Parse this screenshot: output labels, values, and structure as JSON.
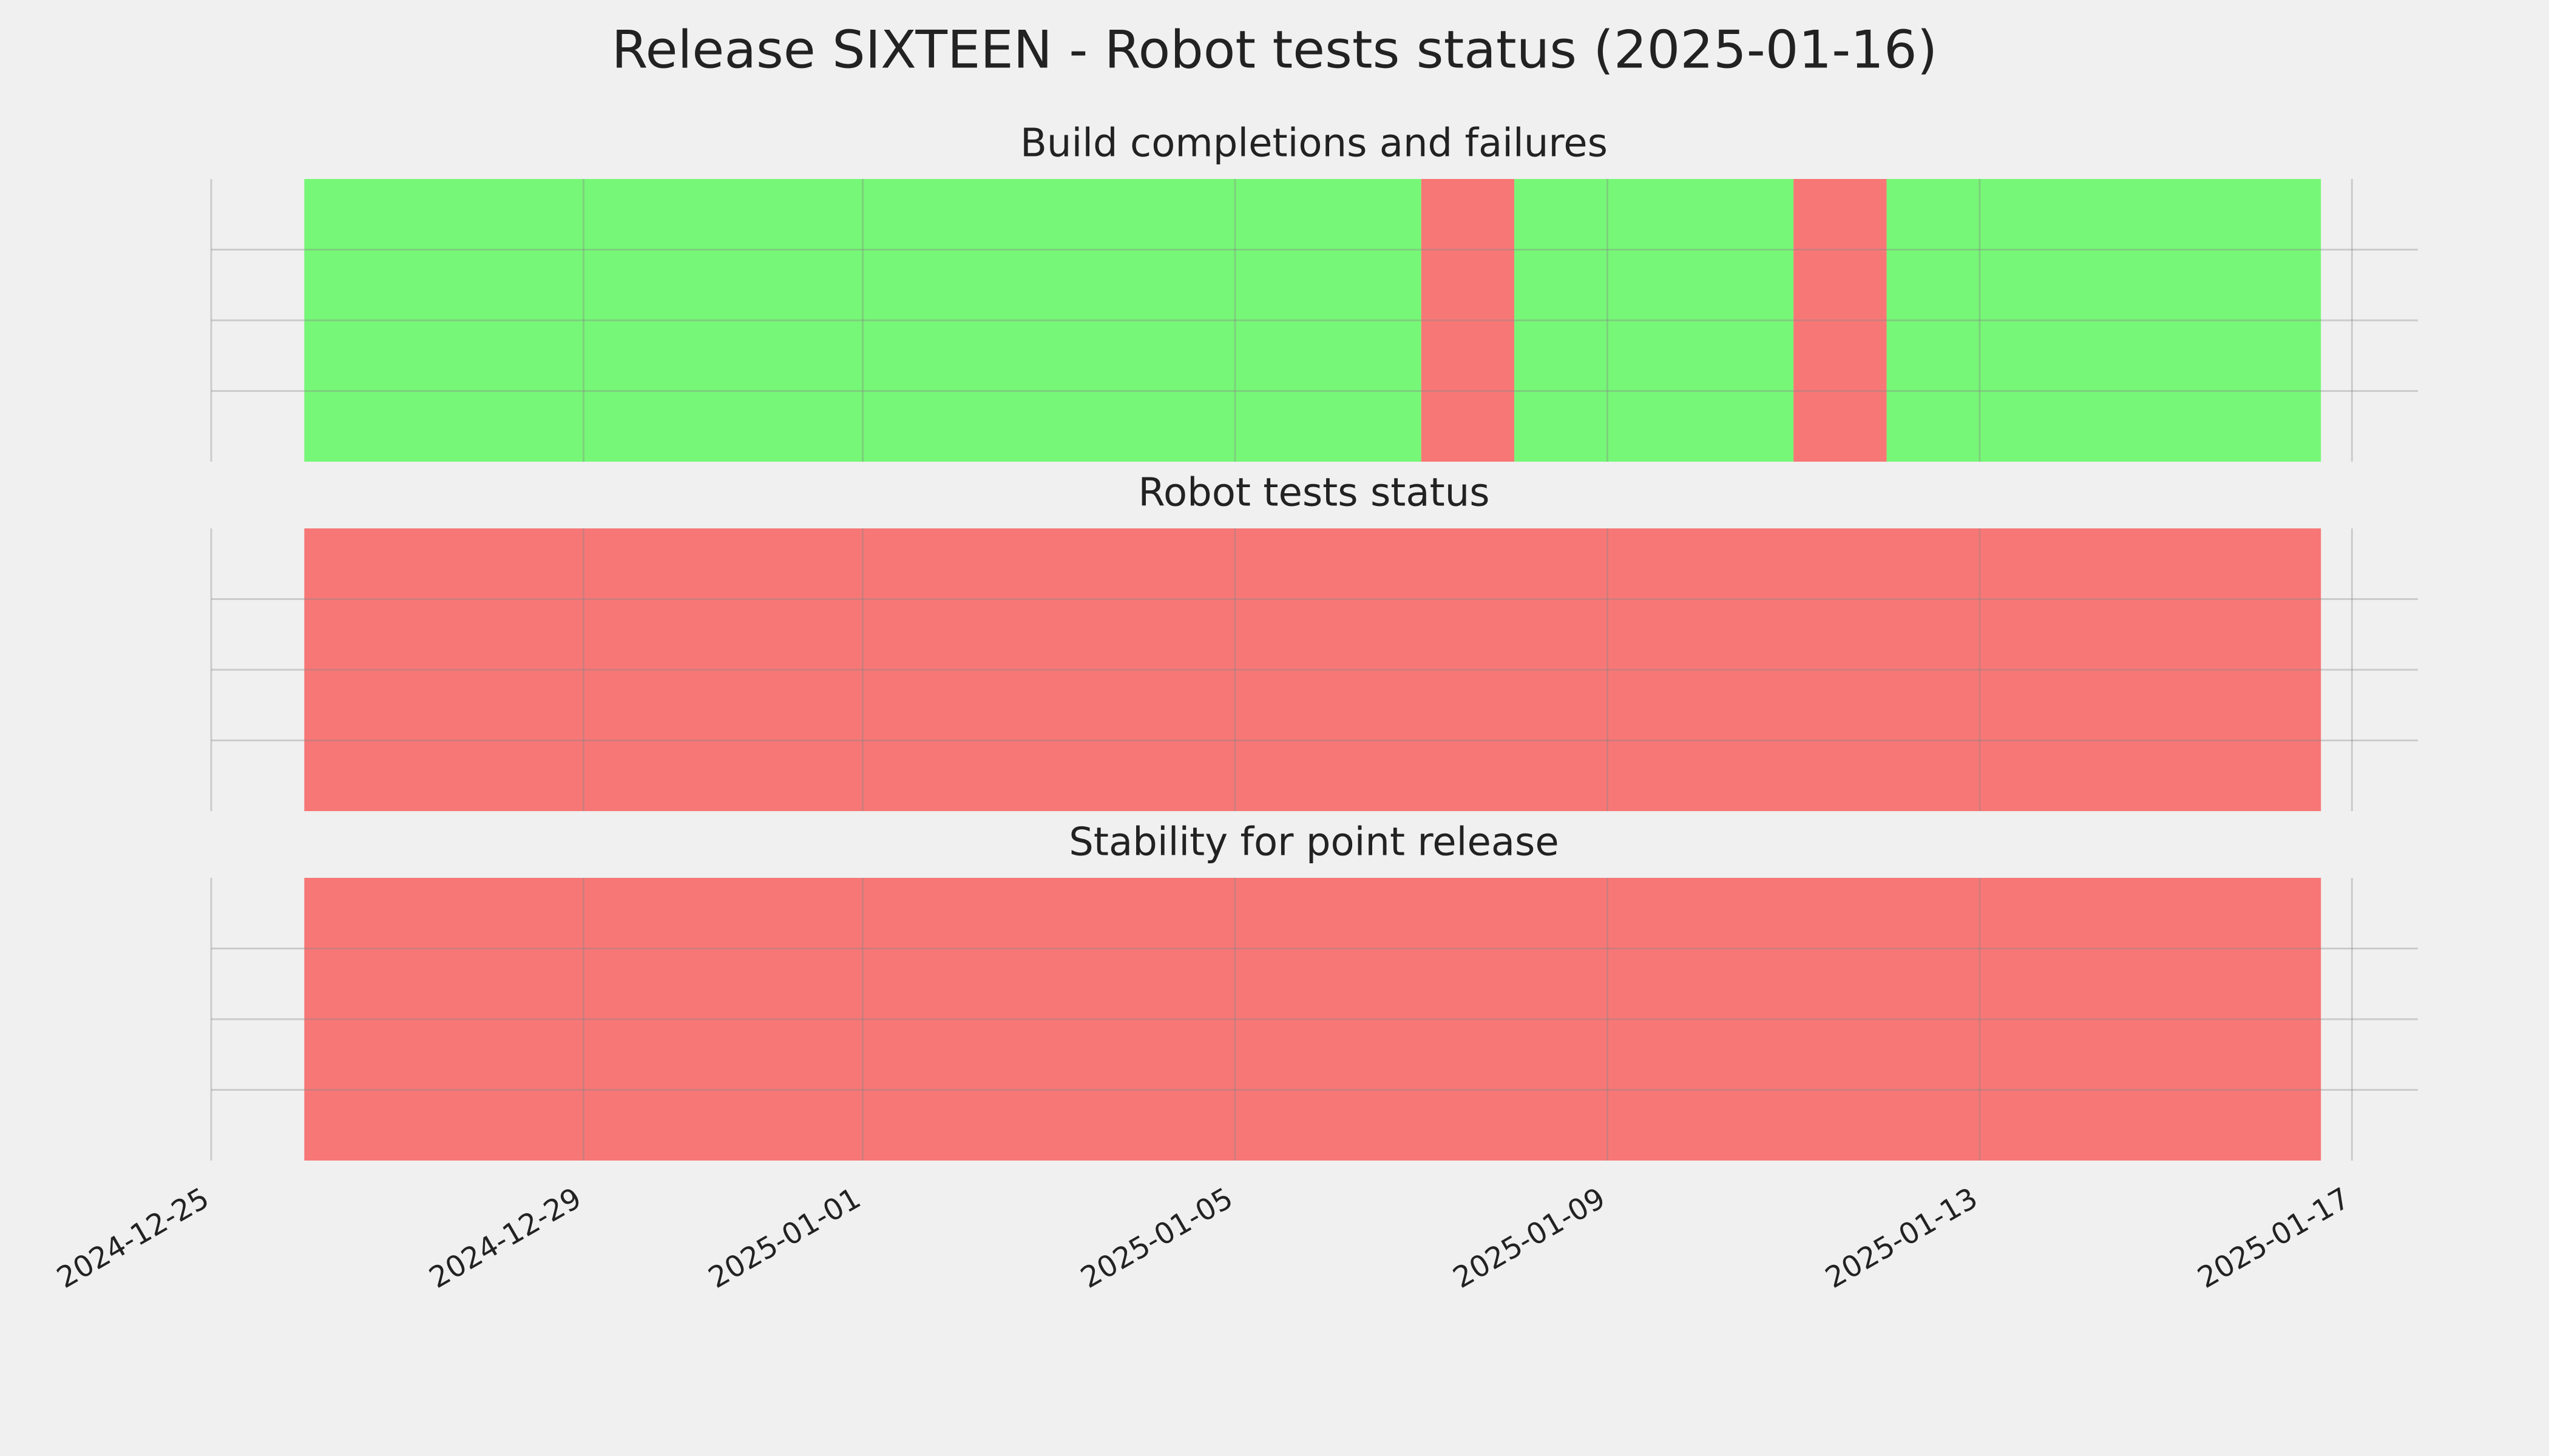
{
  "title": "Release SIXTEEN - Robot tests status (2025-01-16)",
  "chart_data": [
    {
      "type": "timeline",
      "title": "Build completions and failures",
      "spans": [
        {
          "start": "2024-12-26",
          "end": "2025-01-07",
          "color": "#77f777"
        },
        {
          "start": "2025-01-07",
          "end": "2025-01-08",
          "color": "#f77777"
        },
        {
          "start": "2025-01-08",
          "end": "2025-01-11",
          "color": "#77f777"
        },
        {
          "start": "2025-01-11",
          "end": "2025-01-12",
          "color": "#f77777"
        },
        {
          "start": "2025-01-12",
          "end": "2025-01-16T16:00",
          "color": "#77f777"
        }
      ],
      "xlim": [
        "2024-12-25",
        "2025-01-17T17:00"
      ],
      "xticks": [
        "2024-12-25",
        "2024-12-29",
        "2025-01-01",
        "2025-01-05",
        "2025-01-09",
        "2025-01-13",
        "2025-01-17"
      ],
      "ylim": [
        0,
        1
      ],
      "yticks": [
        0.25,
        0.5,
        0.75
      ],
      "grid": true
    },
    {
      "type": "timeline",
      "title": "Robot tests status",
      "spans": [
        {
          "start": "2024-12-26",
          "end": "2025-01-16T16:00",
          "color": "#f77777"
        }
      ],
      "xlim": [
        "2024-12-25",
        "2025-01-17T17:00"
      ],
      "xticks": [
        "2024-12-25",
        "2024-12-29",
        "2025-01-01",
        "2025-01-05",
        "2025-01-09",
        "2025-01-13",
        "2025-01-17"
      ],
      "ylim": [
        0,
        1
      ],
      "yticks": [
        0.25,
        0.5,
        0.75
      ],
      "grid": true
    },
    {
      "type": "timeline",
      "title": "Stability for point release",
      "spans": [
        {
          "start": "2024-12-26",
          "end": "2025-01-16T16:00",
          "color": "#f77777"
        }
      ],
      "xlim": [
        "2024-12-25",
        "2025-01-17T17:00"
      ],
      "xticks": [
        "2024-12-25",
        "2024-12-29",
        "2025-01-01",
        "2025-01-05",
        "2025-01-09",
        "2025-01-13",
        "2025-01-17"
      ],
      "ylim": [
        0,
        1
      ],
      "yticks": [
        0.25,
        0.5,
        0.75
      ],
      "grid": true
    }
  ]
}
